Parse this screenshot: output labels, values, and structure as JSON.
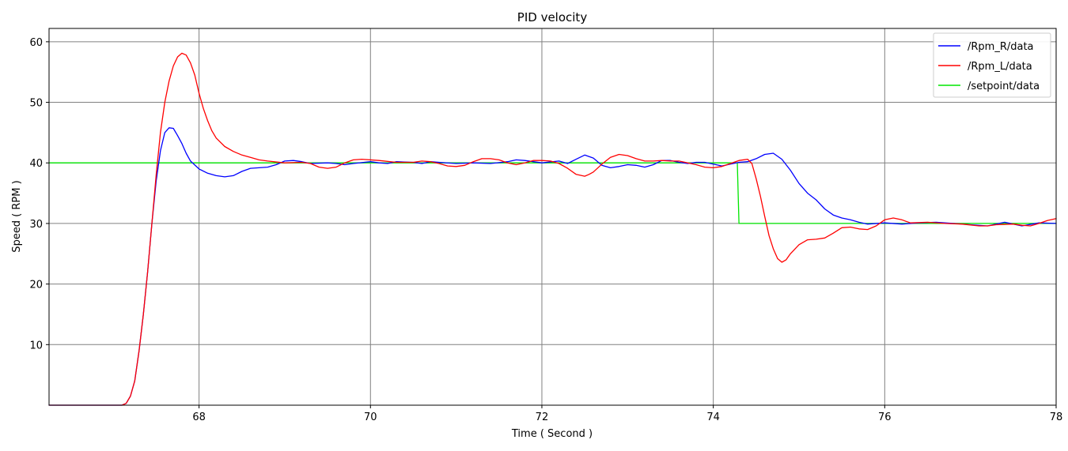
{
  "chart_data": {
    "type": "line",
    "title": "PID velocity",
    "xlabel": "Time ( Second )",
    "ylabel": "Speed ( RPM )",
    "xlim": [
      66.25,
      78
    ],
    "ylim": [
      0,
      62.2
    ],
    "x_ticks": [
      68,
      70,
      72,
      74,
      76,
      78
    ],
    "y_ticks": [
      10,
      20,
      30,
      40,
      50,
      60
    ],
    "grid": true,
    "legend_position": "top-right",
    "series": [
      {
        "name": "/Rpm_R/data",
        "color": "#0000ff",
        "points": [
          [
            66.25,
            0
          ],
          [
            67.1,
            0
          ],
          [
            67.15,
            0.3
          ],
          [
            67.2,
            1.5
          ],
          [
            67.25,
            4
          ],
          [
            67.3,
            9
          ],
          [
            67.35,
            15
          ],
          [
            67.4,
            22
          ],
          [
            67.45,
            30
          ],
          [
            67.5,
            37
          ],
          [
            67.55,
            42
          ],
          [
            67.6,
            45
          ],
          [
            67.65,
            45.8
          ],
          [
            67.7,
            45.7
          ],
          [
            67.75,
            44.5
          ],
          [
            67.8,
            43.2
          ],
          [
            67.85,
            41.6
          ],
          [
            67.9,
            40.3
          ],
          [
            68.0,
            39.0
          ],
          [
            68.1,
            38.3
          ],
          [
            68.2,
            37.9
          ],
          [
            68.3,
            37.7
          ],
          [
            68.4,
            37.9
          ],
          [
            68.5,
            38.6
          ],
          [
            68.6,
            39.1
          ],
          [
            68.7,
            39.2
          ],
          [
            68.8,
            39.3
          ],
          [
            68.9,
            39.7
          ],
          [
            69.0,
            40.3
          ],
          [
            69.1,
            40.4
          ],
          [
            69.2,
            40.2
          ],
          [
            69.3,
            39.9
          ],
          [
            69.5,
            40.0
          ],
          [
            69.6,
            39.9
          ],
          [
            69.7,
            39.7
          ],
          [
            69.8,
            39.9
          ],
          [
            70.0,
            40.2
          ],
          [
            70.1,
            40.0
          ],
          [
            70.2,
            39.9
          ],
          [
            70.3,
            40.2
          ],
          [
            70.5,
            40.1
          ],
          [
            70.6,
            39.9
          ],
          [
            70.7,
            40.2
          ],
          [
            70.8,
            40.1
          ],
          [
            71.0,
            39.9
          ],
          [
            71.2,
            40.0
          ],
          [
            71.4,
            39.9
          ],
          [
            71.6,
            40.2
          ],
          [
            71.7,
            40.5
          ],
          [
            71.8,
            40.4
          ],
          [
            72.0,
            40.0
          ],
          [
            72.2,
            40.3
          ],
          [
            72.3,
            39.9
          ],
          [
            72.4,
            40.6
          ],
          [
            72.5,
            41.3
          ],
          [
            72.6,
            40.8
          ],
          [
            72.7,
            39.6
          ],
          [
            72.8,
            39.2
          ],
          [
            72.9,
            39.4
          ],
          [
            73.0,
            39.7
          ],
          [
            73.1,
            39.6
          ],
          [
            73.2,
            39.3
          ],
          [
            73.3,
            39.7
          ],
          [
            73.4,
            40.4
          ],
          [
            73.5,
            40.4
          ],
          [
            73.6,
            40.1
          ],
          [
            73.7,
            39.9
          ],
          [
            73.8,
            40.1
          ],
          [
            73.9,
            40.1
          ],
          [
            74.0,
            39.8
          ],
          [
            74.1,
            39.5
          ],
          [
            74.2,
            39.8
          ],
          [
            74.3,
            40.1
          ],
          [
            74.4,
            40.2
          ],
          [
            74.5,
            40.7
          ],
          [
            74.6,
            41.4
          ],
          [
            74.7,
            41.6
          ],
          [
            74.8,
            40.6
          ],
          [
            74.9,
            38.8
          ],
          [
            75.0,
            36.6
          ],
          [
            75.1,
            35.0
          ],
          [
            75.2,
            33.9
          ],
          [
            75.3,
            32.4
          ],
          [
            75.4,
            31.4
          ],
          [
            75.5,
            30.9
          ],
          [
            75.6,
            30.6
          ],
          [
            75.7,
            30.2
          ],
          [
            75.8,
            29.9
          ],
          [
            76.0,
            30.1
          ],
          [
            76.2,
            29.9
          ],
          [
            76.4,
            30.1
          ],
          [
            76.6,
            30.2
          ],
          [
            76.8,
            30.0
          ],
          [
            77.0,
            29.8
          ],
          [
            77.2,
            29.6
          ],
          [
            77.4,
            30.2
          ],
          [
            77.6,
            29.6
          ],
          [
            77.8,
            30.1
          ],
          [
            78.0,
            30.0
          ]
        ]
      },
      {
        "name": "/Rpm_L/data",
        "color": "#ff0000",
        "points": [
          [
            66.25,
            0
          ],
          [
            67.1,
            0
          ],
          [
            67.15,
            0.3
          ],
          [
            67.2,
            1.5
          ],
          [
            67.25,
            4
          ],
          [
            67.3,
            9
          ],
          [
            67.35,
            15
          ],
          [
            67.4,
            22
          ],
          [
            67.45,
            30
          ],
          [
            67.5,
            38
          ],
          [
            67.55,
            45
          ],
          [
            67.6,
            50
          ],
          [
            67.65,
            53.5
          ],
          [
            67.7,
            56
          ],
          [
            67.75,
            57.5
          ],
          [
            67.8,
            58.1
          ],
          [
            67.85,
            57.8
          ],
          [
            67.9,
            56.5
          ],
          [
            67.95,
            54.5
          ],
          [
            68.0,
            51.5
          ],
          [
            68.05,
            49
          ],
          [
            68.1,
            47
          ],
          [
            68.15,
            45.3
          ],
          [
            68.2,
            44.1
          ],
          [
            68.3,
            42.7
          ],
          [
            68.4,
            41.9
          ],
          [
            68.5,
            41.3
          ],
          [
            68.6,
            40.9
          ],
          [
            68.7,
            40.5
          ],
          [
            68.8,
            40.3
          ],
          [
            69.0,
            40.0
          ],
          [
            69.2,
            40.1
          ],
          [
            69.3,
            39.9
          ],
          [
            69.4,
            39.3
          ],
          [
            69.5,
            39.1
          ],
          [
            69.6,
            39.3
          ],
          [
            69.7,
            40.0
          ],
          [
            69.8,
            40.5
          ],
          [
            69.9,
            40.6
          ],
          [
            70.1,
            40.4
          ],
          [
            70.3,
            40.1
          ],
          [
            70.5,
            40.1
          ],
          [
            70.6,
            40.3
          ],
          [
            70.7,
            40.2
          ],
          [
            70.8,
            39.9
          ],
          [
            70.9,
            39.5
          ],
          [
            71.0,
            39.4
          ],
          [
            71.1,
            39.6
          ],
          [
            71.2,
            40.2
          ],
          [
            71.3,
            40.7
          ],
          [
            71.4,
            40.7
          ],
          [
            71.5,
            40.5
          ],
          [
            71.6,
            40.0
          ],
          [
            71.7,
            39.7
          ],
          [
            71.8,
            40.0
          ],
          [
            71.9,
            40.4
          ],
          [
            72.0,
            40.4
          ],
          [
            72.1,
            40.3
          ],
          [
            72.2,
            39.9
          ],
          [
            72.3,
            39.1
          ],
          [
            72.4,
            38.1
          ],
          [
            72.5,
            37.8
          ],
          [
            72.55,
            38.1
          ],
          [
            72.6,
            38.5
          ],
          [
            72.7,
            39.8
          ],
          [
            72.8,
            40.9
          ],
          [
            72.9,
            41.4
          ],
          [
            73.0,
            41.2
          ],
          [
            73.1,
            40.7
          ],
          [
            73.2,
            40.3
          ],
          [
            73.3,
            40.3
          ],
          [
            73.4,
            40.4
          ],
          [
            73.5,
            40.3
          ],
          [
            73.6,
            40.3
          ],
          [
            73.8,
            39.7
          ],
          [
            73.9,
            39.3
          ],
          [
            74.0,
            39.2
          ],
          [
            74.1,
            39.4
          ],
          [
            74.2,
            39.9
          ],
          [
            74.3,
            40.4
          ],
          [
            74.4,
            40.6
          ],
          [
            74.45,
            39.9
          ],
          [
            74.5,
            37.4
          ],
          [
            74.55,
            34.5
          ],
          [
            74.6,
            31.2
          ],
          [
            74.65,
            28
          ],
          [
            74.7,
            25.8
          ],
          [
            74.75,
            24.2
          ],
          [
            74.8,
            23.6
          ],
          [
            74.85,
            24
          ],
          [
            74.9,
            25
          ],
          [
            75.0,
            26.5
          ],
          [
            75.1,
            27.3
          ],
          [
            75.2,
            27.4
          ],
          [
            75.3,
            27.6
          ],
          [
            75.4,
            28.4
          ],
          [
            75.5,
            29.3
          ],
          [
            75.6,
            29.4
          ],
          [
            75.7,
            29.1
          ],
          [
            75.8,
            29.0
          ],
          [
            75.9,
            29.6
          ],
          [
            76.0,
            30.6
          ],
          [
            76.1,
            30.9
          ],
          [
            76.2,
            30.6
          ],
          [
            76.3,
            30.1
          ],
          [
            76.5,
            30.2
          ],
          [
            76.7,
            30.0
          ],
          [
            76.9,
            29.9
          ],
          [
            77.1,
            29.6
          ],
          [
            77.2,
            29.6
          ],
          [
            77.3,
            29.8
          ],
          [
            77.5,
            29.9
          ],
          [
            77.6,
            29.7
          ],
          [
            77.7,
            29.6
          ],
          [
            77.8,
            30.0
          ],
          [
            77.9,
            30.5
          ],
          [
            78.0,
            30.8
          ]
        ]
      },
      {
        "name": "/setpoint/data",
        "color": "#00e600",
        "points": [
          [
            66.25,
            40
          ],
          [
            74.28,
            40
          ],
          [
            74.3,
            30
          ],
          [
            78.0,
            30
          ]
        ]
      }
    ]
  }
}
